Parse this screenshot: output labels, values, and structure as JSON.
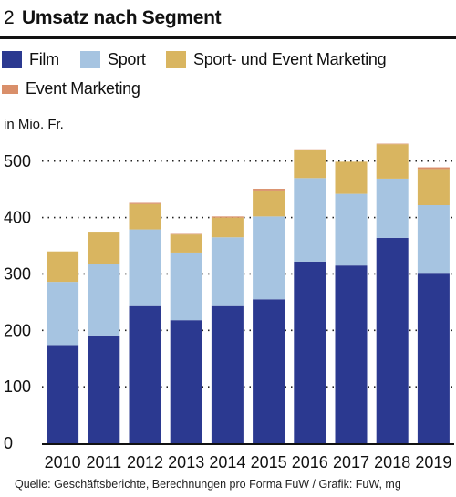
{
  "figure": {
    "number": "2",
    "title": "Umsatz nach Segment"
  },
  "legend": {
    "items": [
      {
        "label": "Film",
        "color": "#2b3990"
      },
      {
        "label": "Sport",
        "color": "#a6c4e1"
      },
      {
        "label": "Sport- und Event Marketing",
        "color": "#d9b560"
      },
      {
        "label": "Event Marketing",
        "color": "#d98f6a"
      }
    ]
  },
  "unit_label": "in Mio. Fr.",
  "source": "Quelle: Geschäftsberichte, Berechnungen pro Forma FuW / Grafik: FuW, mg",
  "chart_data": {
    "type": "bar",
    "stacked": true,
    "categories": [
      "2010",
      "2011",
      "2012",
      "2013",
      "2014",
      "2015",
      "2016",
      "2017",
      "2018",
      "2019"
    ],
    "series": [
      {
        "name": "Film",
        "color": "#2b3990",
        "values": [
          174,
          191,
          243,
          218,
          243,
          255,
          322,
          315,
          364,
          302
        ]
      },
      {
        "name": "Sport",
        "color": "#a6c4e1",
        "values": [
          112,
          126,
          136,
          120,
          122,
          147,
          148,
          127,
          105,
          120
        ]
      },
      {
        "name": "Sport- und Event Marketing",
        "color": "#d9b560",
        "values": [
          54,
          58,
          45,
          32,
          35,
          46,
          49,
          57,
          61,
          64
        ]
      },
      {
        "name": "Event Marketing",
        "color": "#d98f6a",
        "values": [
          0,
          0,
          2,
          1,
          2,
          3,
          2,
          0,
          1,
          3
        ]
      }
    ],
    "ylim": [
      0,
      540
    ],
    "yticks": [
      0,
      100,
      200,
      300,
      400,
      500
    ],
    "grid": true
  }
}
